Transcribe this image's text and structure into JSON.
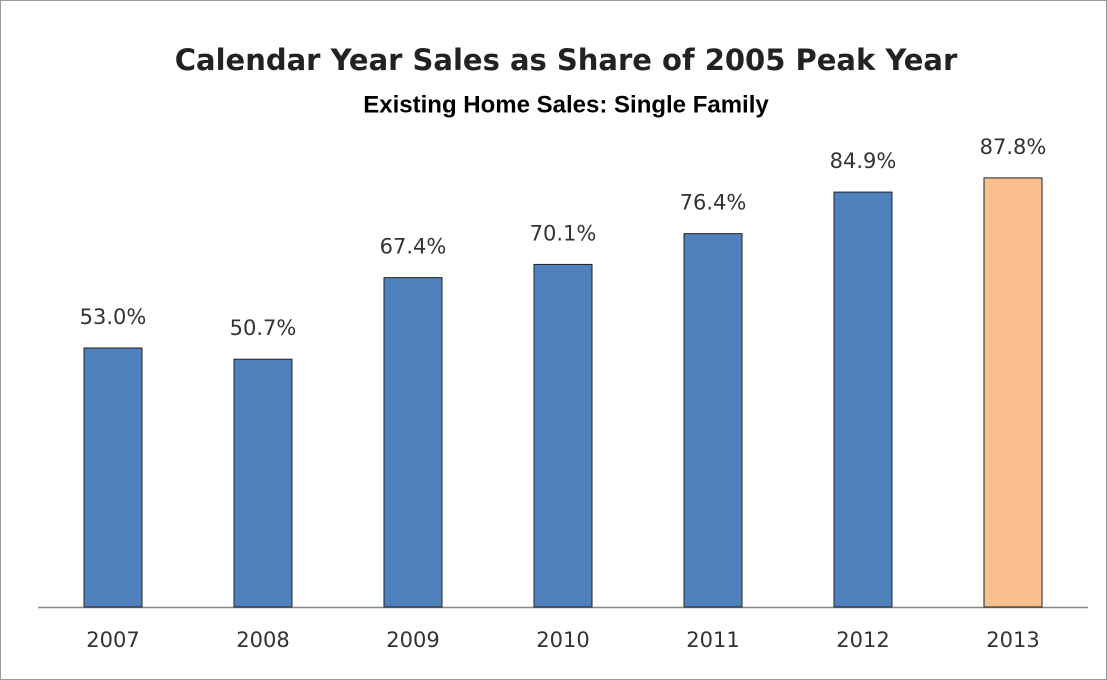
{
  "chart_data": {
    "type": "bar",
    "title": "Calendar Year Sales as Share of 2005 Peak Year",
    "subtitle": "Existing Home Sales:  Single Family",
    "categories": [
      "2007",
      "2008",
      "2009",
      "2010",
      "2011",
      "2012",
      "2013"
    ],
    "values": [
      53.0,
      50.7,
      67.4,
      70.1,
      76.4,
      84.9,
      87.8
    ],
    "value_labels": [
      "53.0%",
      "50.7%",
      "67.4%",
      "70.1%",
      "76.4%",
      "84.9%",
      "87.8%"
    ],
    "colors": [
      "#4f81bd",
      "#4f81bd",
      "#4f81bd",
      "#4f81bd",
      "#4f81bd",
      "#4f81bd",
      "#fac090"
    ]
  }
}
